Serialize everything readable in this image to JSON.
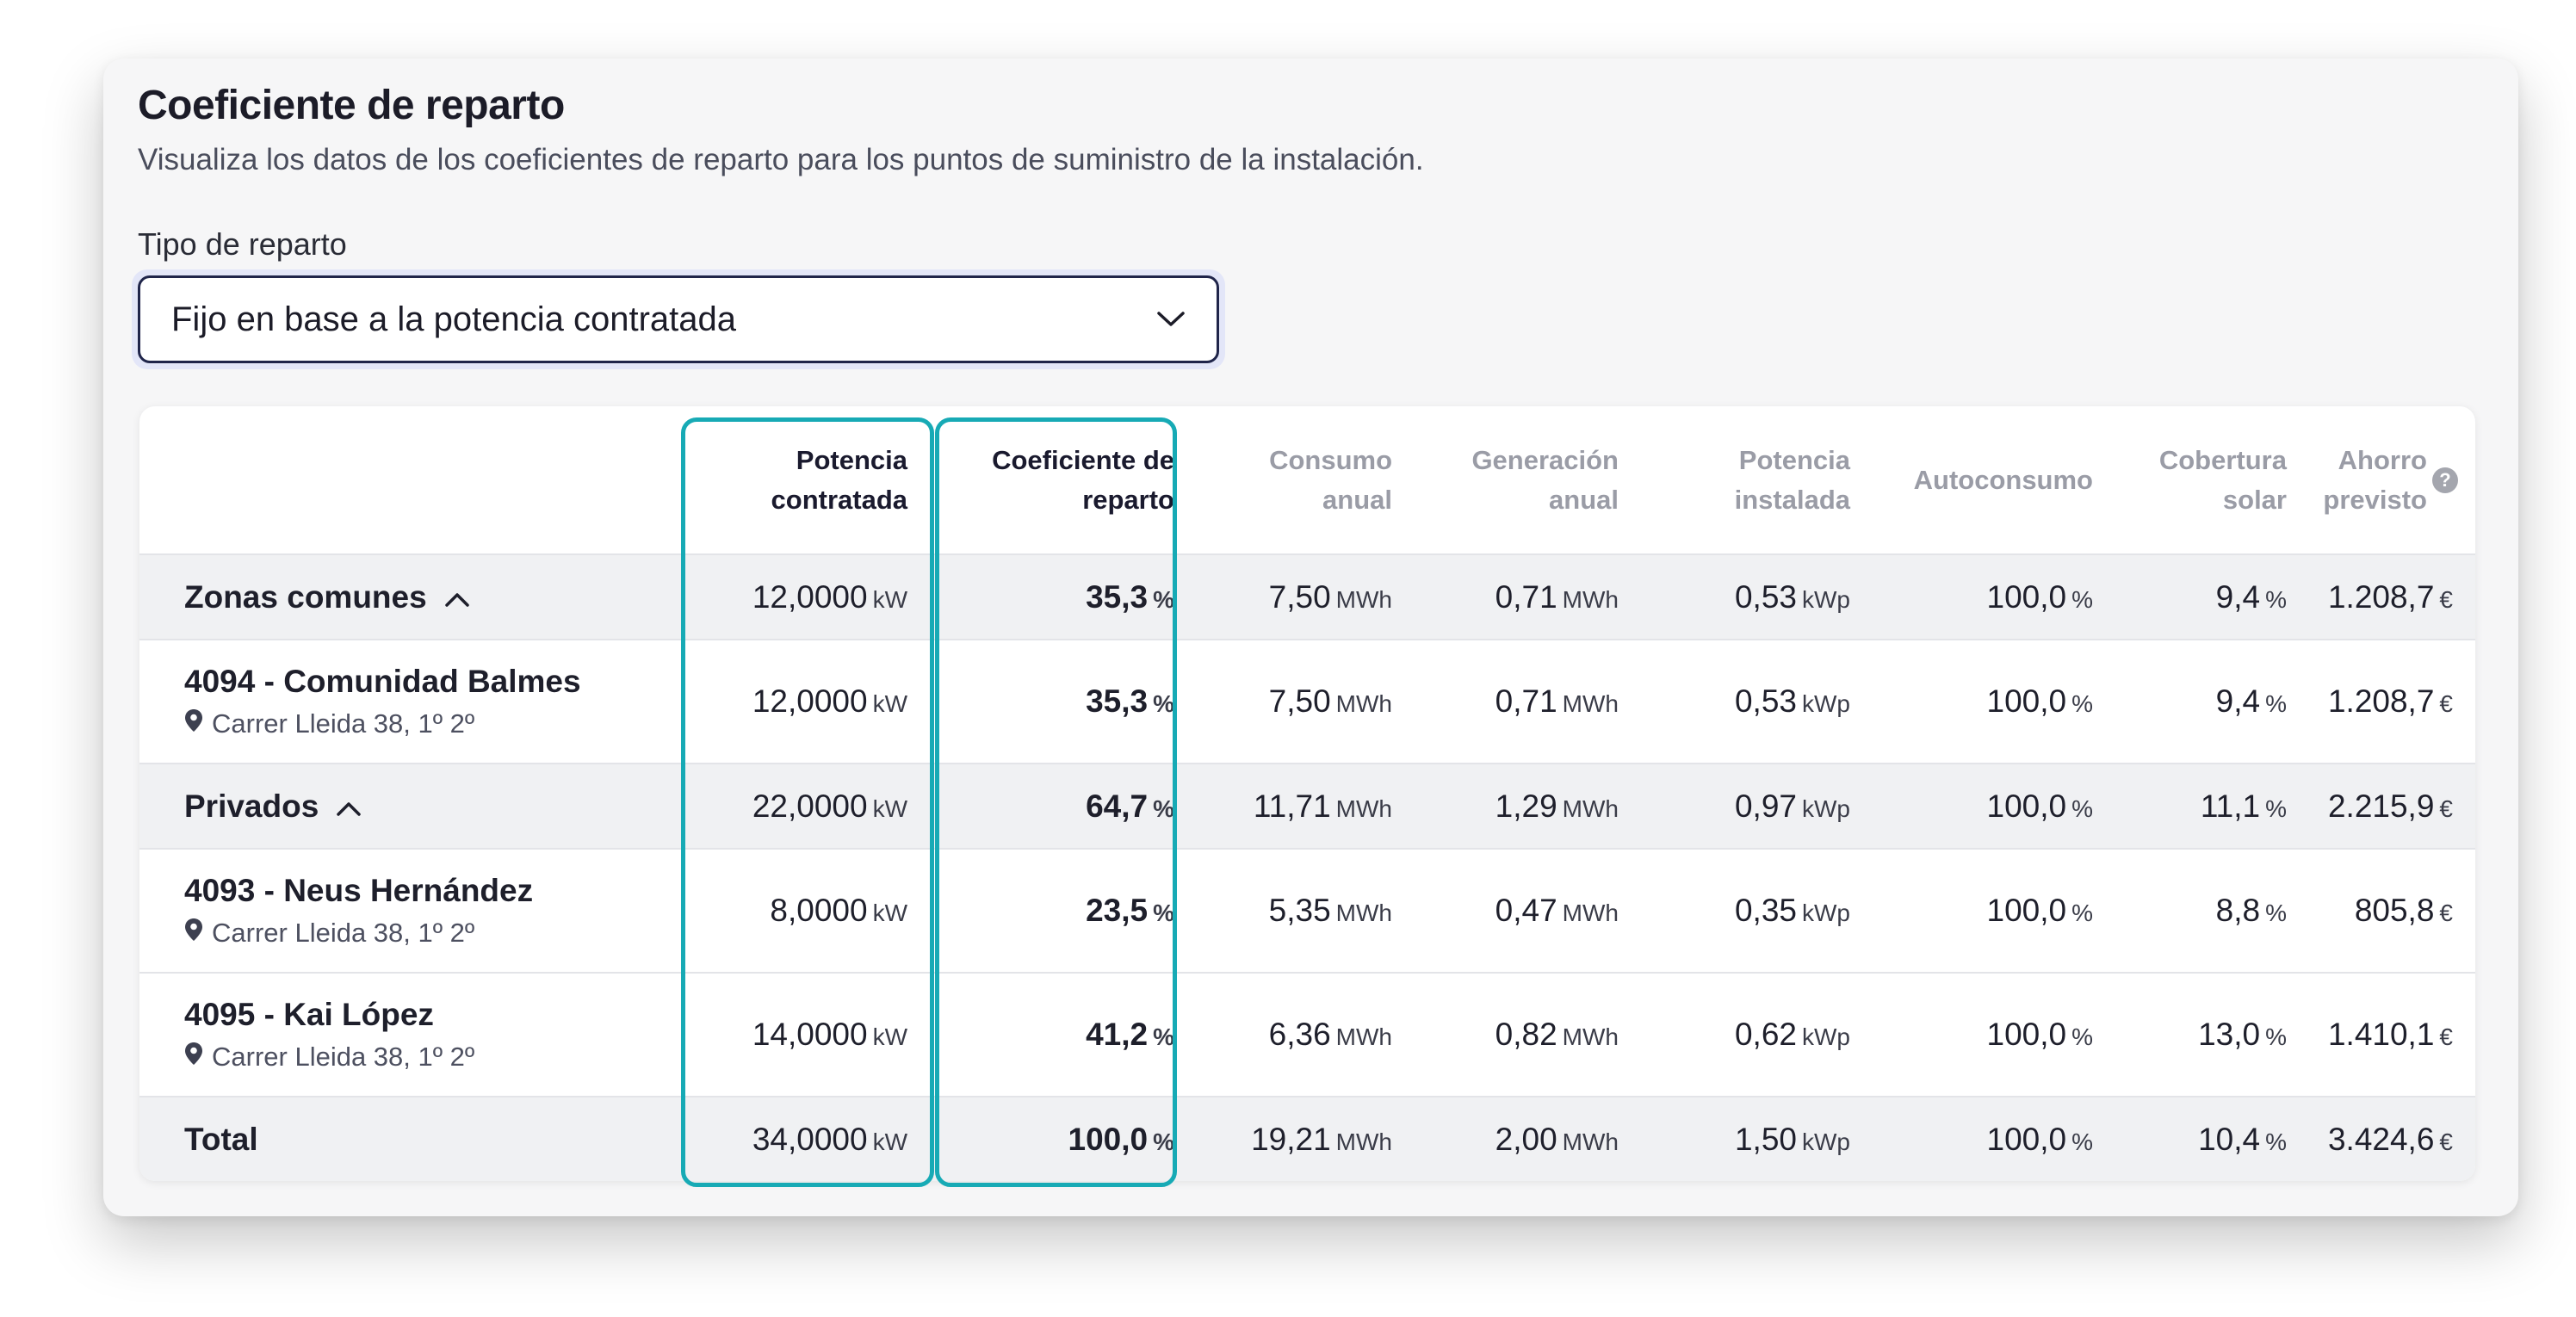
{
  "header": {
    "title": "Coeficiente de reparto",
    "subtitle": "Visualiza los datos de los coeficientes de reparto para los puntos de suministro de la instalación."
  },
  "distribution": {
    "label": "Tipo de reparto",
    "selected": "Fijo en base a la potencia contratada"
  },
  "table": {
    "columns": [
      {
        "line1": "Potencia",
        "line2": "contratada"
      },
      {
        "line1": "Coeficiente de",
        "line2": "reparto"
      },
      {
        "line1": "Consumo",
        "line2": "anual"
      },
      {
        "line1": "Generación",
        "line2": "anual"
      },
      {
        "line1": "Potencia",
        "line2": "instalada"
      },
      {
        "line1": "Autoconsumo",
        "line2": ""
      },
      {
        "line1": "Cobertura",
        "line2": "solar"
      },
      {
        "line1": "Ahorro",
        "line2": "previsto"
      }
    ],
    "units": {
      "kw": "kW",
      "pct": "%",
      "mwh": "MWh",
      "kwp": "kWp",
      "eur": "€"
    },
    "rows": [
      {
        "type": "group",
        "name": "Zonas comunes",
        "potencia": "12,0000",
        "coef": "35,3",
        "consumo": "7,50",
        "generacion": "0,71",
        "instalada": "0,53",
        "autoconsumo": "100,0",
        "cobertura": "9,4",
        "ahorro": "1.208,7"
      },
      {
        "type": "item",
        "name": "4094 - Comunidad Balmes",
        "address": "Carrer Lleida 38, 1º 2º",
        "potencia": "12,0000",
        "coef": "35,3",
        "consumo": "7,50",
        "generacion": "0,71",
        "instalada": "0,53",
        "autoconsumo": "100,0",
        "cobertura": "9,4",
        "ahorro": "1.208,7"
      },
      {
        "type": "group",
        "name": "Privados",
        "potencia": "22,0000",
        "coef": "64,7",
        "consumo": "11,71",
        "generacion": "1,29",
        "instalada": "0,97",
        "autoconsumo": "100,0",
        "cobertura": "11,1",
        "ahorro": "2.215,9"
      },
      {
        "type": "item",
        "name": "4093 - Neus Hernández",
        "address": "Carrer Lleida 38, 1º 2º",
        "potencia": "8,0000",
        "coef": "23,5",
        "consumo": "5,35",
        "generacion": "0,47",
        "instalada": "0,35",
        "autoconsumo": "100,0",
        "cobertura": "8,8",
        "ahorro": "805,8"
      },
      {
        "type": "item",
        "name": "4095 - Kai López",
        "address": "Carrer Lleida 38, 1º 2º",
        "potencia": "14,0000",
        "coef": "41,2",
        "consumo": "6,36",
        "generacion": "0,82",
        "instalada": "0,62",
        "autoconsumo": "100,0",
        "cobertura": "13,0",
        "ahorro": "1.410,1"
      },
      {
        "type": "total",
        "name": "Total",
        "potencia": "34,0000",
        "coef": "100,0",
        "consumo": "19,21",
        "generacion": "2,00",
        "instalada": "1,50",
        "autoconsumo": "100,0",
        "cobertura": "10,4",
        "ahorro": "3.424,6"
      }
    ]
  },
  "icons": {
    "select_chevron": "chevron-down-icon",
    "group_toggle": "chevron-up-icon",
    "address": "map-pin-icon",
    "help": "question-circle-icon",
    "help_glyph": "?"
  },
  "colors": {
    "highlight": "#17aab5",
    "select_border": "#20254a",
    "select_ring": "#e3e6f8"
  }
}
